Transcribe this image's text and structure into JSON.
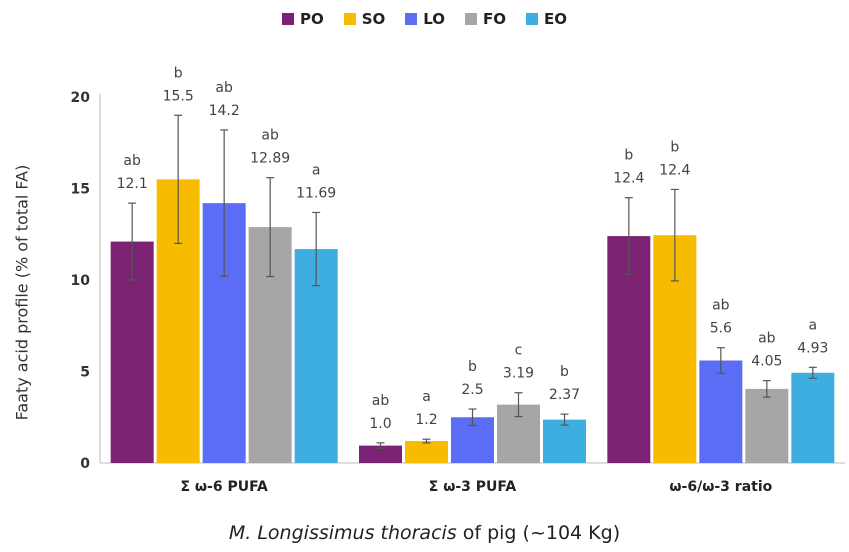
{
  "legend": [
    {
      "name": "PO",
      "color": "#7B2372"
    },
    {
      "name": "SO",
      "color": "#F7BC00"
    },
    {
      "name": "LO",
      "color": "#5B6CF5"
    },
    {
      "name": "FO",
      "color": "#A6A6A6"
    },
    {
      "name": "EO",
      "color": "#3EADDF"
    }
  ],
  "xlabel": {
    "italic": "M. Longissimus thoracis",
    "rest": " of pig (~104 Kg)"
  },
  "chart_data": {
    "type": "bar",
    "title": "",
    "ylabel": "Faaty acid profile (% of total FA)",
    "xlabel": "M. Longissimus thoracis of pig (~104 Kg)",
    "ylim": [
      0,
      20
    ],
    "yticks": [
      0,
      5,
      10,
      15,
      20
    ],
    "grid": false,
    "legend_position": "top",
    "categories": [
      "Σ ω-6 PUFA",
      "Σ ω-3 PUFA",
      "ω-6/ω-3 ratio"
    ],
    "series": [
      {
        "name": "PO",
        "values": [
          12.1,
          0.95,
          12.4
        ],
        "errors": [
          2.1,
          0.15,
          2.1
        ],
        "labels": [
          "12.1",
          "1.0",
          "12.4"
        ],
        "letters": [
          "ab",
          "ab",
          "b"
        ]
      },
      {
        "name": "SO",
        "values": [
          15.5,
          1.2,
          12.45
        ],
        "errors": [
          3.5,
          0.1,
          2.5
        ],
        "labels": [
          "15.5",
          "1.2",
          "12.4"
        ],
        "letters": [
          "b",
          "a",
          "b"
        ]
      },
      {
        "name": "LO",
        "values": [
          14.2,
          2.5,
          5.6
        ],
        "errors": [
          4.0,
          0.45,
          0.7
        ],
        "labels": [
          "14.2",
          "2.5",
          "5.6"
        ],
        "letters": [
          "ab",
          "b",
          "ab"
        ]
      },
      {
        "name": "FO",
        "values": [
          12.89,
          3.19,
          4.05
        ],
        "errors": [
          2.7,
          0.65,
          0.45
        ],
        "labels": [
          "12.89",
          "3.19",
          "4.05"
        ],
        "letters": [
          "ab",
          "c",
          "ab"
        ]
      },
      {
        "name": "EO",
        "values": [
          11.69,
          2.37,
          4.93
        ],
        "errors": [
          2.0,
          0.3,
          0.3
        ],
        "labels": [
          "11.69",
          "2.37",
          "4.93"
        ],
        "letters": [
          "a",
          "b",
          "a"
        ]
      }
    ]
  }
}
